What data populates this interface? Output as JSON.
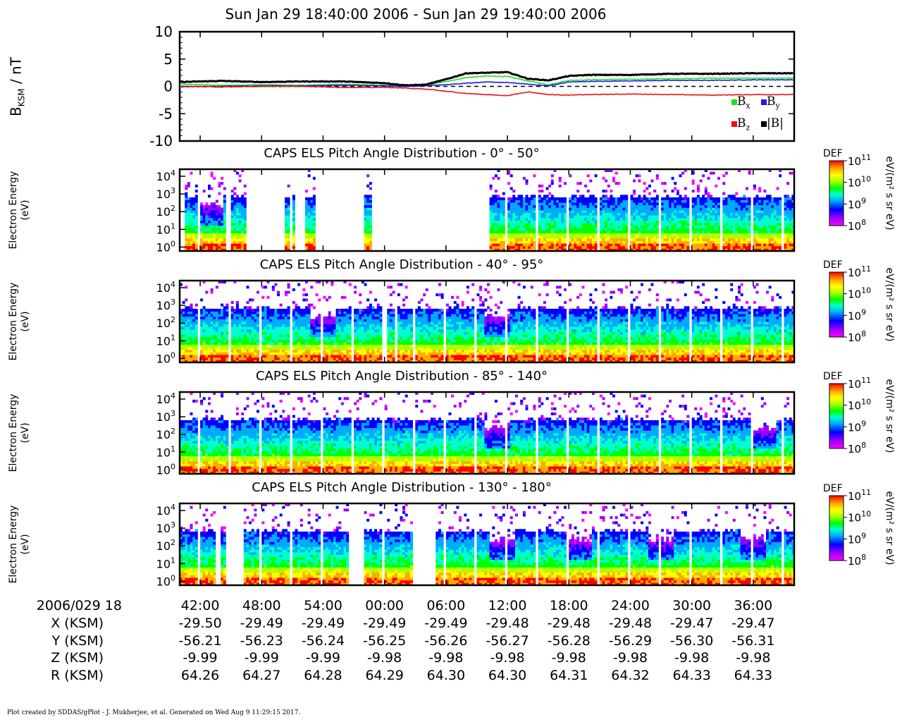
{
  "title": "Sun Jan 29 18:40:00 2006 - Sun Jan 29 19:40:00 2006",
  "footer": "Plot created by SDDAS/gPlot - J. Mukherjee, et al.  Generated on Wed Aug 9 11:29:15 2017.",
  "colors": {
    "Bx": "#22dd22",
    "By": "#1a1aee",
    "Bz": "#ee1111",
    "Bmag": "#000000"
  },
  "colorbar": {
    "label": "DEF",
    "unit": "eV/(m² s sr eV)",
    "ticks": [
      {
        "base": "10",
        "exp": "11"
      },
      {
        "base": "10",
        "exp": "10"
      },
      {
        "base": "10",
        "exp": "9"
      },
      {
        "base": "10",
        "exp": "8"
      }
    ],
    "scale": "log",
    "range": [
      100000000.0,
      100000000000.0
    ],
    "colormap": [
      "#ff00ff",
      "#9900ff",
      "#0000ff",
      "#00aaff",
      "#00ffcc",
      "#00ff00",
      "#aaff00",
      "#ffff00",
      "#ffaa00",
      "#ff0000"
    ]
  },
  "chart_data": [
    {
      "type": "line",
      "ylabel_base": "B",
      "ylabel_sub": "KSM",
      "ylabel_unit": " / nT",
      "ylim": [
        -10,
        10
      ],
      "yticks": [
        "10",
        "5",
        "0",
        "-5",
        "-10"
      ],
      "xlim_min": [
        0,
        60
      ],
      "reference_line": 0,
      "legend": [
        {
          "key": "Bx",
          "base": "B",
          "sub": "x"
        },
        {
          "key": "By",
          "base": "B",
          "sub": "y"
        },
        {
          "key": "Bz",
          "base": "B",
          "sub": "z"
        },
        {
          "key": "Bmag",
          "base": "|B|",
          "sub": ""
        }
      ],
      "series": [
        {
          "name": "Bx",
          "x": [
            0,
            4,
            8,
            12,
            16,
            20,
            22,
            24,
            26,
            28,
            30,
            32,
            34,
            36,
            38,
            40,
            44,
            48,
            52,
            56,
            60
          ],
          "y": [
            0.4,
            0.2,
            0.3,
            0.2,
            0.4,
            0.2,
            0.1,
            0.2,
            0.9,
            1.6,
            1.9,
            1.8,
            1.0,
            0.3,
            1.1,
            1.2,
            1.3,
            1.4,
            1.5,
            1.5,
            1.5
          ]
        },
        {
          "name": "By",
          "x": [
            0,
            4,
            8,
            12,
            16,
            20,
            22,
            24,
            26,
            28,
            30,
            32,
            34,
            36,
            38,
            40,
            44,
            48,
            52,
            56,
            60
          ],
          "y": [
            -0.1,
            0.0,
            0.1,
            0.1,
            0.2,
            0.1,
            0.0,
            0.1,
            0.3,
            0.6,
            0.8,
            0.7,
            0.4,
            0.1,
            0.8,
            0.9,
            1.0,
            1.1,
            1.1,
            1.2,
            1.2
          ]
        },
        {
          "name": "Bz",
          "x": [
            0,
            4,
            8,
            12,
            16,
            20,
            22,
            24,
            26,
            28,
            30,
            32,
            34,
            36,
            38,
            40,
            44,
            48,
            52,
            56,
            60
          ],
          "y": [
            0.0,
            -0.1,
            0.0,
            0.0,
            -0.2,
            -0.2,
            -0.3,
            -0.5,
            -0.9,
            -1.3,
            -1.5,
            -1.7,
            -1.0,
            -1.5,
            -1.6,
            -1.5,
            -1.4,
            -1.5,
            -1.6,
            -1.5,
            -1.5
          ]
        },
        {
          "name": "Bmag",
          "x": [
            0,
            4,
            8,
            12,
            16,
            20,
            22,
            24,
            26,
            28,
            30,
            32,
            34,
            36,
            38,
            40,
            44,
            48,
            52,
            56,
            60
          ],
          "y": [
            0.8,
            1.0,
            0.8,
            0.9,
            0.9,
            0.6,
            0.2,
            0.3,
            1.3,
            2.4,
            2.5,
            2.6,
            1.4,
            1.1,
            1.9,
            2.1,
            2.1,
            2.3,
            2.3,
            2.4,
            2.4
          ]
        }
      ]
    },
    {
      "type": "heatmap",
      "title": "CAPS ELS Pitch Angle Distribution - 0° - 50°",
      "ylabel": "Electron Energy\n(eV)",
      "yscale": "log",
      "ylim": [
        0.6,
        25000
      ],
      "yticks": [
        {
          "base": "10",
          "exp": "4"
        },
        {
          "base": "10",
          "exp": "3"
        },
        {
          "base": "10",
          "exp": "2"
        },
        {
          "base": "10",
          "exp": "1"
        },
        {
          "base": "10",
          "exp": "0"
        }
      ],
      "coverage_min": [
        [
          0.5,
          4.4
        ],
        [
          5.0,
          6.5
        ],
        [
          10.3,
          11.3
        ],
        [
          12.2,
          13.3
        ],
        [
          18.1,
          18.7
        ],
        [
          30.2,
          60
        ]
      ],
      "dip_min": [
        3.0,
        16.0
      ]
    },
    {
      "type": "heatmap",
      "title": "CAPS ELS Pitch Angle Distribution - 40° - 95°",
      "ylabel": "Electron Energy\n(eV)",
      "yscale": "log",
      "ylim": [
        0.6,
        25000
      ],
      "yticks": [
        {
          "base": "10",
          "exp": "4"
        },
        {
          "base": "10",
          "exp": "3"
        },
        {
          "base": "10",
          "exp": "2"
        },
        {
          "base": "10",
          "exp": "1"
        },
        {
          "base": "10",
          "exp": "0"
        }
      ],
      "coverage_min": [
        [
          0,
          20.0
        ],
        [
          20.3,
          20.9
        ],
        [
          21.2,
          60
        ]
      ],
      "dip_min": [
        14.0,
        31.0
      ]
    },
    {
      "type": "heatmap",
      "title": "CAPS ELS Pitch Angle Distribution - 85° - 140°",
      "ylabel": "Electron Energy\n(eV)",
      "yscale": "log",
      "ylim": [
        0.6,
        25000
      ],
      "yticks": [
        {
          "base": "10",
          "exp": "4"
        },
        {
          "base": "10",
          "exp": "3"
        },
        {
          "base": "10",
          "exp": "2"
        },
        {
          "base": "10",
          "exp": "1"
        },
        {
          "base": "10",
          "exp": "0"
        }
      ],
      "coverage_min": [
        [
          0,
          60
        ]
      ],
      "dip_min": [
        31.0,
        57.0
      ]
    },
    {
      "type": "heatmap",
      "title": "CAPS ELS Pitch Angle Distribution - 130° - 180°",
      "ylabel": "Electron Energy\n(eV)",
      "yscale": "log",
      "ylim": [
        0.6,
        25000
      ],
      "yticks": [
        {
          "base": "10",
          "exp": "4"
        },
        {
          "base": "10",
          "exp": "3"
        },
        {
          "base": "10",
          "exp": "2"
        },
        {
          "base": "10",
          "exp": "1"
        },
        {
          "base": "10",
          "exp": "0"
        }
      ],
      "coverage_min": [
        [
          0,
          3.6
        ],
        [
          4.0,
          4.6
        ],
        [
          6.3,
          16.5
        ],
        [
          18.0,
          22.7
        ],
        [
          25.0,
          60
        ]
      ],
      "dip_min": [
        31.5,
        39.0,
        47.0,
        56.0
      ]
    }
  ],
  "time_axis": {
    "date_label": "2006/029 18",
    "tick_min": [
      2,
      8,
      14,
      20,
      26,
      32,
      38,
      44,
      50,
      56
    ],
    "labels": [
      "42:00",
      "48:00",
      "54:00",
      "00:00",
      "06:00",
      "12:00",
      "18:00",
      "24:00",
      "30:00",
      "36:00"
    ]
  },
  "ephemeris": [
    {
      "label": "X (KSM)",
      "values": [
        "-29.50",
        "-29.49",
        "-29.49",
        "-29.49",
        "-29.49",
        "-29.48",
        "-29.48",
        "-29.48",
        "-29.47",
        "-29.47"
      ]
    },
    {
      "label": "Y (KSM)",
      "values": [
        "-56.21",
        "-56.23",
        "-56.24",
        "-56.25",
        "-56.26",
        "-56.27",
        "-56.28",
        "-56.29",
        "-56.30",
        "-56.31"
      ]
    },
    {
      "label": "Z (KSM)",
      "values": [
        "-9.99",
        "-9.99",
        "-9.99",
        "-9.98",
        "-9.98",
        "-9.98",
        "-9.98",
        "-9.98",
        "-9.98",
        "-9.98"
      ]
    },
    {
      "label": "R (KSM)",
      "values": [
        "64.26",
        "64.27",
        "64.28",
        "64.29",
        "64.30",
        "64.30",
        "64.31",
        "64.32",
        "64.33",
        "64.33"
      ]
    }
  ]
}
